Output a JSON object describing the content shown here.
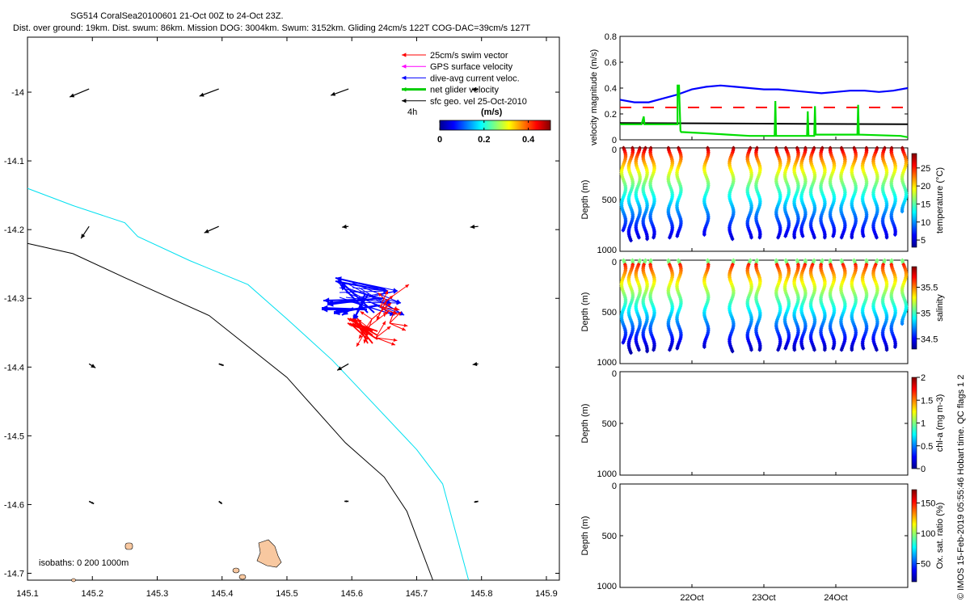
{
  "header": {
    "title": "SG514 CoralSea20100601 21-Oct 00Z to 24-Oct 23Z.",
    "subtitle": "Dist. over ground: 19km. Dist. swum: 86km. Mission DOG: 3004km. Swum: 3152km. Gliding 24cm/s 122T COG-DAC=39cm/s 127T"
  },
  "map": {
    "xlim": [
      145.1,
      145.92
    ],
    "ylim": [
      -14.71,
      -13.92
    ],
    "xticks": [
      "145.1",
      "145.2",
      "145.3",
      "145.4",
      "145.5",
      "145.6",
      "145.7",
      "145.8",
      "145.9"
    ],
    "yticks": [
      "-14",
      "-14.1",
      "-14.2",
      "-14.3",
      "-14.4",
      "-14.5",
      "-14.6",
      "-14.7"
    ],
    "legend": [
      {
        "label": "25cm/s swim vector",
        "color": "#ff0000"
      },
      {
        "label": "GPS surface velocity",
        "color": "#ff00ff"
      },
      {
        "label": "dive-avg current veloc.",
        "color": "#0000ff"
      },
      {
        "label": "net glider velocity",
        "color": "#00cc00"
      },
      {
        "label": "sfc geo. vel 25-Oct-2010",
        "color": "#000000"
      }
    ],
    "time_label": "4h",
    "colorbar": {
      "unit": "(m/s)",
      "ticks": [
        "0",
        "0.2",
        "0.4"
      ],
      "range": [
        0,
        0.5
      ]
    },
    "isobath_label": "isobaths: 0   200  1000m",
    "isobath_colors": {
      "shore": "#f8c8a0",
      "200m": "#00e0f0",
      "1000m": "#000000"
    }
  },
  "right_panels": {
    "velocity": {
      "ylabel": "velocity magnitude (m/s)",
      "yticks": [
        "0",
        "0.2",
        "0.4",
        "0.6",
        "0.8"
      ],
      "ylim": [
        0,
        0.8
      ]
    },
    "depth_ticks": [
      "0",
      "500",
      "1000"
    ],
    "depth_label": "Depth (m)",
    "temperature": {
      "label": "temperature (°C)",
      "ticks": [
        "5",
        "10",
        "15",
        "20",
        "25"
      ]
    },
    "salinity": {
      "label": "salinity",
      "ticks": [
        "34.5",
        "35",
        "35.5"
      ]
    },
    "chl": {
      "label": "chl-a (mg m-3)",
      "ticks": [
        "0",
        "0.5",
        "1",
        "1.5",
        "2"
      ]
    },
    "oxygen": {
      "label": "Ox. sat. ratio (%)",
      "ticks": [
        "50",
        "100",
        "150"
      ]
    },
    "time_ticks": [
      "22Oct",
      "23Oct",
      "24Oct"
    ],
    "xlim_days": [
      21.0,
      25.0
    ]
  },
  "footer_vertical": "© IMOS 15-Feb-2019 05:55:46 Hobart time. QC flags 1  2",
  "chart_data": [
    {
      "type": "line",
      "x_unit": "day of October 2010",
      "ylabel": "velocity magnitude (m/s)",
      "ylim": [
        0,
        0.8
      ],
      "series": [
        {
          "color": "#0000ff",
          "x": [
            21.0,
            21.2,
            21.4,
            21.6,
            21.8,
            22.0,
            22.2,
            22.4,
            22.6,
            22.8,
            23.0,
            23.2,
            23.4,
            23.6,
            23.8,
            24.0,
            24.2,
            24.4,
            24.6,
            24.8,
            25.0
          ],
          "values": [
            0.31,
            0.29,
            0.29,
            0.32,
            0.35,
            0.39,
            0.41,
            0.42,
            0.41,
            0.4,
            0.39,
            0.39,
            0.38,
            0.37,
            0.36,
            0.37,
            0.38,
            0.38,
            0.37,
            0.38,
            0.4
          ]
        },
        {
          "color": "#ff0000",
          "dashed": true,
          "x": [
            21.0,
            25.0
          ],
          "values": [
            0.25,
            0.25
          ]
        },
        {
          "color": "#000000",
          "x": [
            21.0,
            25.0
          ],
          "values": [
            0.13,
            0.12
          ]
        },
        {
          "color": "#00dd00",
          "x": [
            21.0,
            21.3,
            21.33,
            21.34,
            21.8,
            21.8,
            21.82,
            21.84,
            21.85,
            22.2,
            22.5,
            22.8,
            23.15,
            23.16,
            23.17,
            23.5,
            23.6,
            23.61,
            23.62,
            23.7,
            23.71,
            23.72,
            24.3,
            24.31,
            24.32,
            24.9,
            25.0
          ],
          "values": [
            0.12,
            0.12,
            0.18,
            0.12,
            0.12,
            0.42,
            0.42,
            0.07,
            0.06,
            0.05,
            0.04,
            0.03,
            0.03,
            0.3,
            0.03,
            0.03,
            0.03,
            0.22,
            0.03,
            0.03,
            0.26,
            0.04,
            0.04,
            0.27,
            0.04,
            0.03,
            0.02
          ]
        }
      ]
    },
    {
      "type": "scatter",
      "name_hint": "glider profiles (depth vs time colored by variable)",
      "profile_days": [
        21.05,
        21.15,
        21.25,
        21.35,
        21.45,
        21.7,
        21.82,
        22.2,
        22.55,
        22.8,
        22.92,
        23.2,
        23.32,
        23.45,
        23.55,
        23.68,
        23.82,
        23.95,
        24.1,
        24.25,
        24.4,
        24.55,
        24.68,
        24.8,
        24.95
      ],
      "max_depth_m": [
        800,
        900,
        880,
        890,
        870,
        870,
        860,
        850,
        890,
        870,
        880,
        870,
        860,
        880,
        860,
        880,
        870,
        860,
        880,
        870,
        860,
        870,
        880,
        850,
        620
      ],
      "ylim": [
        1000,
        0
      ]
    }
  ]
}
